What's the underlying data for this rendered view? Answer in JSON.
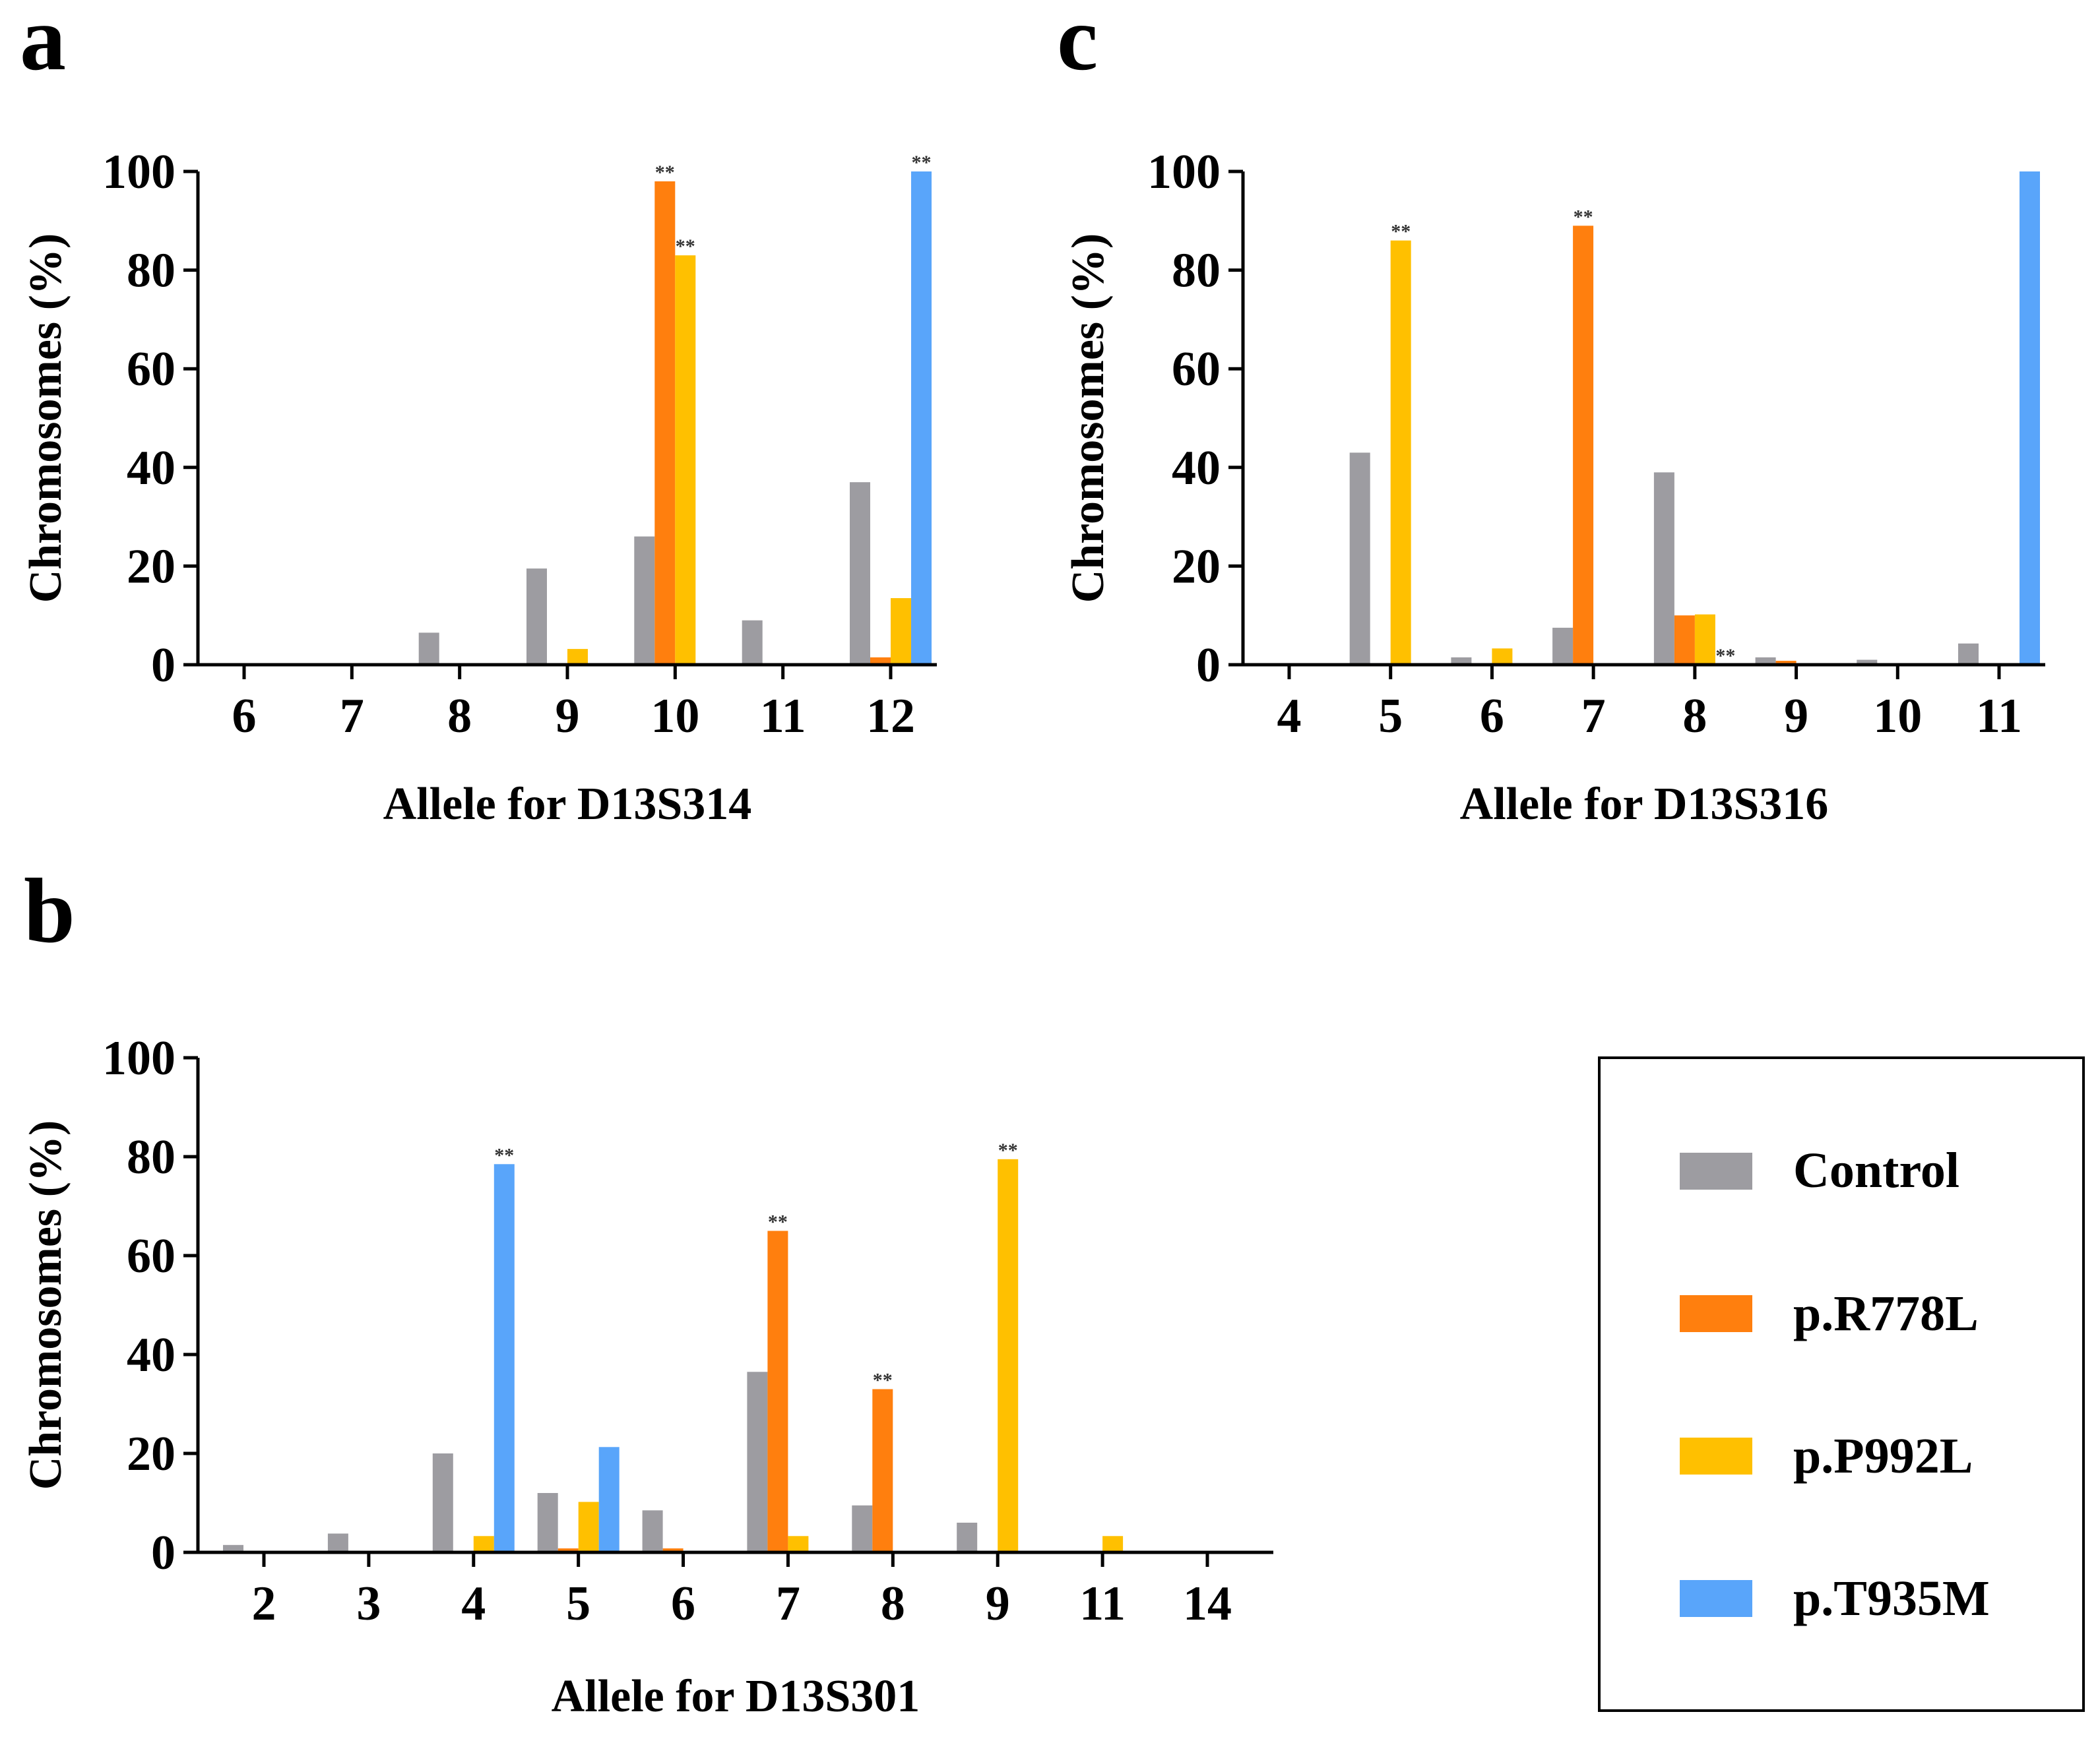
{
  "colors": {
    "Control": "#9d9ca1",
    "p.R778L": "#ff7f0e",
    "p.P992L": "#ffc000",
    "p.T935M": "#59a5fa"
  },
  "legend": {
    "entries": [
      "Control",
      "p.R778L",
      "p.P992L",
      "p.T935M"
    ]
  },
  "chart_data": [
    {
      "panel": "a",
      "type": "bar",
      "xlabel": "Allele for D13S314",
      "ylabel": "Chromosomes (%)",
      "ylim": [
        0,
        100
      ],
      "yticks": [
        0,
        20,
        40,
        60,
        80,
        100
      ],
      "categories": [
        "6",
        "7",
        "8",
        "9",
        "10",
        "11",
        "12"
      ],
      "series": [
        {
          "name": "Control",
          "values": [
            0.3,
            0.3,
            6.5,
            19.5,
            26,
            9,
            37
          ]
        },
        {
          "name": "p.R778L",
          "values": [
            0,
            0,
            0,
            0,
            98,
            0,
            1.5
          ]
        },
        {
          "name": "p.P992L",
          "values": [
            0,
            0,
            0,
            3.2,
            83,
            0,
            13.5
          ]
        },
        {
          "name": "p.T935M",
          "values": [
            0,
            0,
            0,
            0,
            0,
            0,
            100
          ]
        }
      ],
      "annotations": [
        {
          "category": "10",
          "series": "p.R778L",
          "text": "**"
        },
        {
          "category": "10",
          "series": "p.P992L",
          "text": "**"
        },
        {
          "category": "12",
          "series": "p.T935M",
          "text": "**"
        }
      ]
    },
    {
      "panel": "b",
      "type": "bar",
      "xlabel": "Allele for D13S301",
      "ylabel": "Chromosomes (%)",
      "ylim": [
        0,
        100
      ],
      "yticks": [
        0,
        20,
        40,
        60,
        80,
        100
      ],
      "categories": [
        "2",
        "3",
        "4",
        "5",
        "6",
        "7",
        "8",
        "9",
        "11",
        "14"
      ],
      "series": [
        {
          "name": "Control",
          "values": [
            1.5,
            3.8,
            20,
            12,
            8.5,
            36.5,
            9.5,
            6,
            0,
            0.3
          ]
        },
        {
          "name": "p.R778L",
          "values": [
            0,
            0,
            0,
            0.8,
            0.8,
            65,
            33,
            0,
            0,
            0
          ]
        },
        {
          "name": "p.P992L",
          "values": [
            0,
            0,
            3.3,
            10.2,
            0,
            3.3,
            0,
            79.5,
            3.3,
            0
          ]
        },
        {
          "name": "p.T935M",
          "values": [
            0,
            0,
            78.5,
            21.3,
            0,
            0,
            0,
            0,
            0,
            0
          ]
        }
      ],
      "annotations": [
        {
          "category": "4",
          "series": "p.T935M",
          "text": "**"
        },
        {
          "category": "7",
          "series": "p.R778L",
          "text": "**"
        },
        {
          "category": "8",
          "series": "p.R778L",
          "text": "**"
        },
        {
          "category": "9",
          "series": "p.P992L",
          "text": "**"
        }
      ]
    },
    {
      "panel": "c",
      "type": "bar",
      "xlabel": "Allele for D13S316",
      "ylabel": "Chromosomes (%)",
      "ylim": [
        0,
        100
      ],
      "yticks": [
        0,
        20,
        40,
        60,
        80,
        100
      ],
      "categories": [
        "4",
        "5",
        "6",
        "7",
        "8",
        "9",
        "10",
        "11"
      ],
      "series": [
        {
          "name": "Control",
          "values": [
            0.3,
            43,
            1.5,
            7.5,
            39,
            1.5,
            1,
            4.3
          ]
        },
        {
          "name": "p.R778L",
          "values": [
            0,
            0,
            0,
            89,
            10,
            0.8,
            0,
            0
          ]
        },
        {
          "name": "p.P992L",
          "values": [
            0,
            86,
            3.3,
            0,
            10.2,
            0,
            0,
            0
          ]
        },
        {
          "name": "p.T935M",
          "values": [
            0,
            0,
            0,
            0,
            0,
            0,
            0,
            100
          ]
        }
      ],
      "annotations": [
        {
          "category": "5",
          "series": "p.P992L",
          "text": "**"
        },
        {
          "category": "7",
          "series": "p.R778L",
          "text": "**"
        },
        {
          "category": "8",
          "series": "p.T935M",
          "text": "**"
        }
      ]
    }
  ]
}
